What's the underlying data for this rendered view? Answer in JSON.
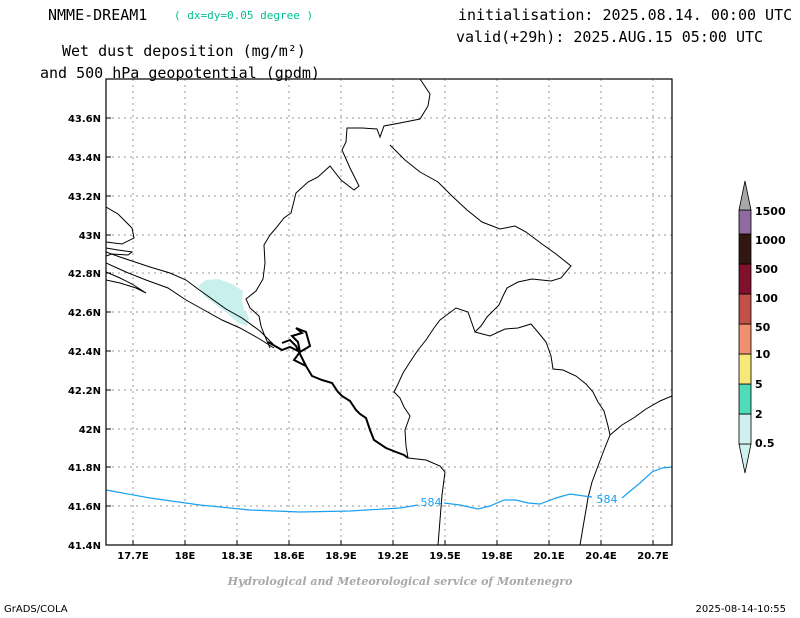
{
  "header": {
    "model": "NMME-DREAM1",
    "resolution": "( dx=dy=0.05 degree )",
    "title_line1": "Wet dust deposition (mg/m²)",
    "title_line2": "and 500 hPa geopotential (gpdm)",
    "initialisation": "initialisation: 2025.08.14. 00:00 UTC",
    "valid": "valid(+29h): 2025.AUG.15 05:00 UTC"
  },
  "footer": {
    "credit": "Hydrological and Meteorological service of Montenegro",
    "software": "GrADS/COLA",
    "timestamp": "2025-08-14-10:55"
  },
  "map": {
    "lat_labels": [
      "43.6N",
      "43.4N",
      "43.2N",
      "43N",
      "42.8N",
      "42.6N",
      "42.4N",
      "42.2N",
      "42N",
      "41.8N",
      "41.6N",
      "41.4N"
    ],
    "lon_labels": [
      "17.7E",
      "18E",
      "18.3E",
      "18.6E",
      "18.9E",
      "19.2E",
      "19.5E",
      "19.8E",
      "20.1E",
      "20.4E",
      "20.7E"
    ],
    "contour_label": "584",
    "contour_color": "#1aa0f0",
    "deposition_color": "#c8f0ec"
  },
  "legend": {
    "items": [
      {
        "label": "0.5",
        "color": "#d0f2ee"
      },
      {
        "label": "2",
        "color": "#50dcb8"
      },
      {
        "label": "5",
        "color": "#f8e878"
      },
      {
        "label": "10",
        "color": "#f09070"
      },
      {
        "label": "50",
        "color": "#c05048"
      },
      {
        "label": "100",
        "color": "#80102e"
      },
      {
        "label": "500",
        "color": "#301810"
      },
      {
        "label": "1000",
        "color": "#906aa0"
      },
      {
        "label": "1500",
        "color": "#a8a8a8"
      }
    ]
  }
}
